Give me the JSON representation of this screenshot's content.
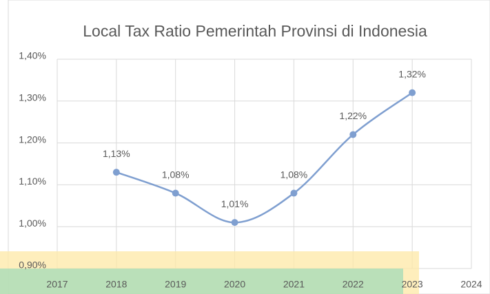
{
  "chart_data": {
    "type": "line",
    "title": "Local Tax Ratio Pemerintah Provinsi di Indonesia",
    "x": [
      2018,
      2019,
      2020,
      2021,
      2022,
      2023
    ],
    "series": [
      {
        "name": "Local Tax Ratio",
        "color": "#7f9fd0",
        "values": [
          1.13,
          1.08,
          1.01,
          1.08,
          1.22,
          1.32
        ],
        "value_labels": [
          "1,13%",
          "1,08%",
          "1,01%",
          "1,08%",
          "1,22%",
          "1,32%"
        ]
      }
    ],
    "xlim": [
      2017,
      2024
    ],
    "xticks": [
      2017,
      2018,
      2019,
      2020,
      2021,
      2022,
      2023,
      2024
    ],
    "ylim": [
      0.9,
      1.4
    ],
    "yticks": [
      {
        "value": 0.9,
        "label": "0,90%"
      },
      {
        "value": 1.0,
        "label": "1,00%"
      },
      {
        "value": 1.1,
        "label": "1,10%"
      },
      {
        "value": 1.2,
        "label": "1,20%"
      },
      {
        "value": 1.3,
        "label": "1,30%"
      },
      {
        "value": 1.4,
        "label": "1,40%"
      }
    ],
    "grid": true,
    "smooth": true
  }
}
